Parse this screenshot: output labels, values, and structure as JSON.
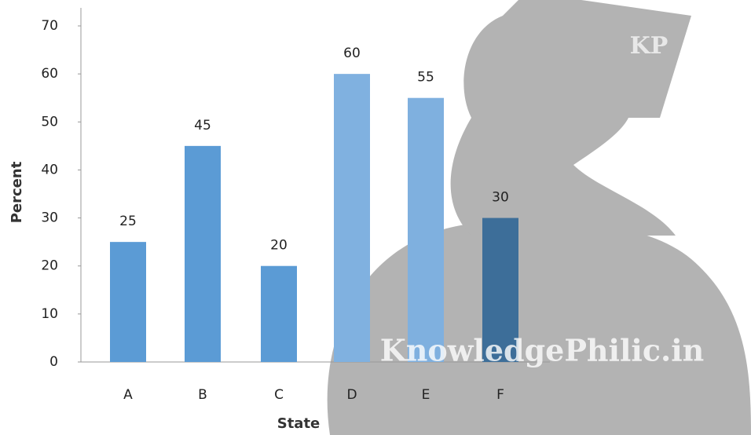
{
  "chart_data": {
    "type": "bar",
    "categories": [
      "A",
      "B",
      "C",
      "D",
      "E",
      "F"
    ],
    "values": [
      25,
      45,
      20,
      60,
      55,
      30
    ],
    "colors": [
      "#5b9bd5",
      "#5b9bd5",
      "#5b9bd5",
      "#80b1e0",
      "#7fb0df",
      "#3d6e99"
    ],
    "x_label": "State",
    "y_label": "Percent",
    "ylim": [
      0,
      70
    ],
    "yticks": [
      0,
      10,
      20,
      30,
      40,
      50,
      60,
      70
    ],
    "grid": false,
    "watermark": [
      "KP",
      "KnowledgePhilic.in"
    ]
  }
}
